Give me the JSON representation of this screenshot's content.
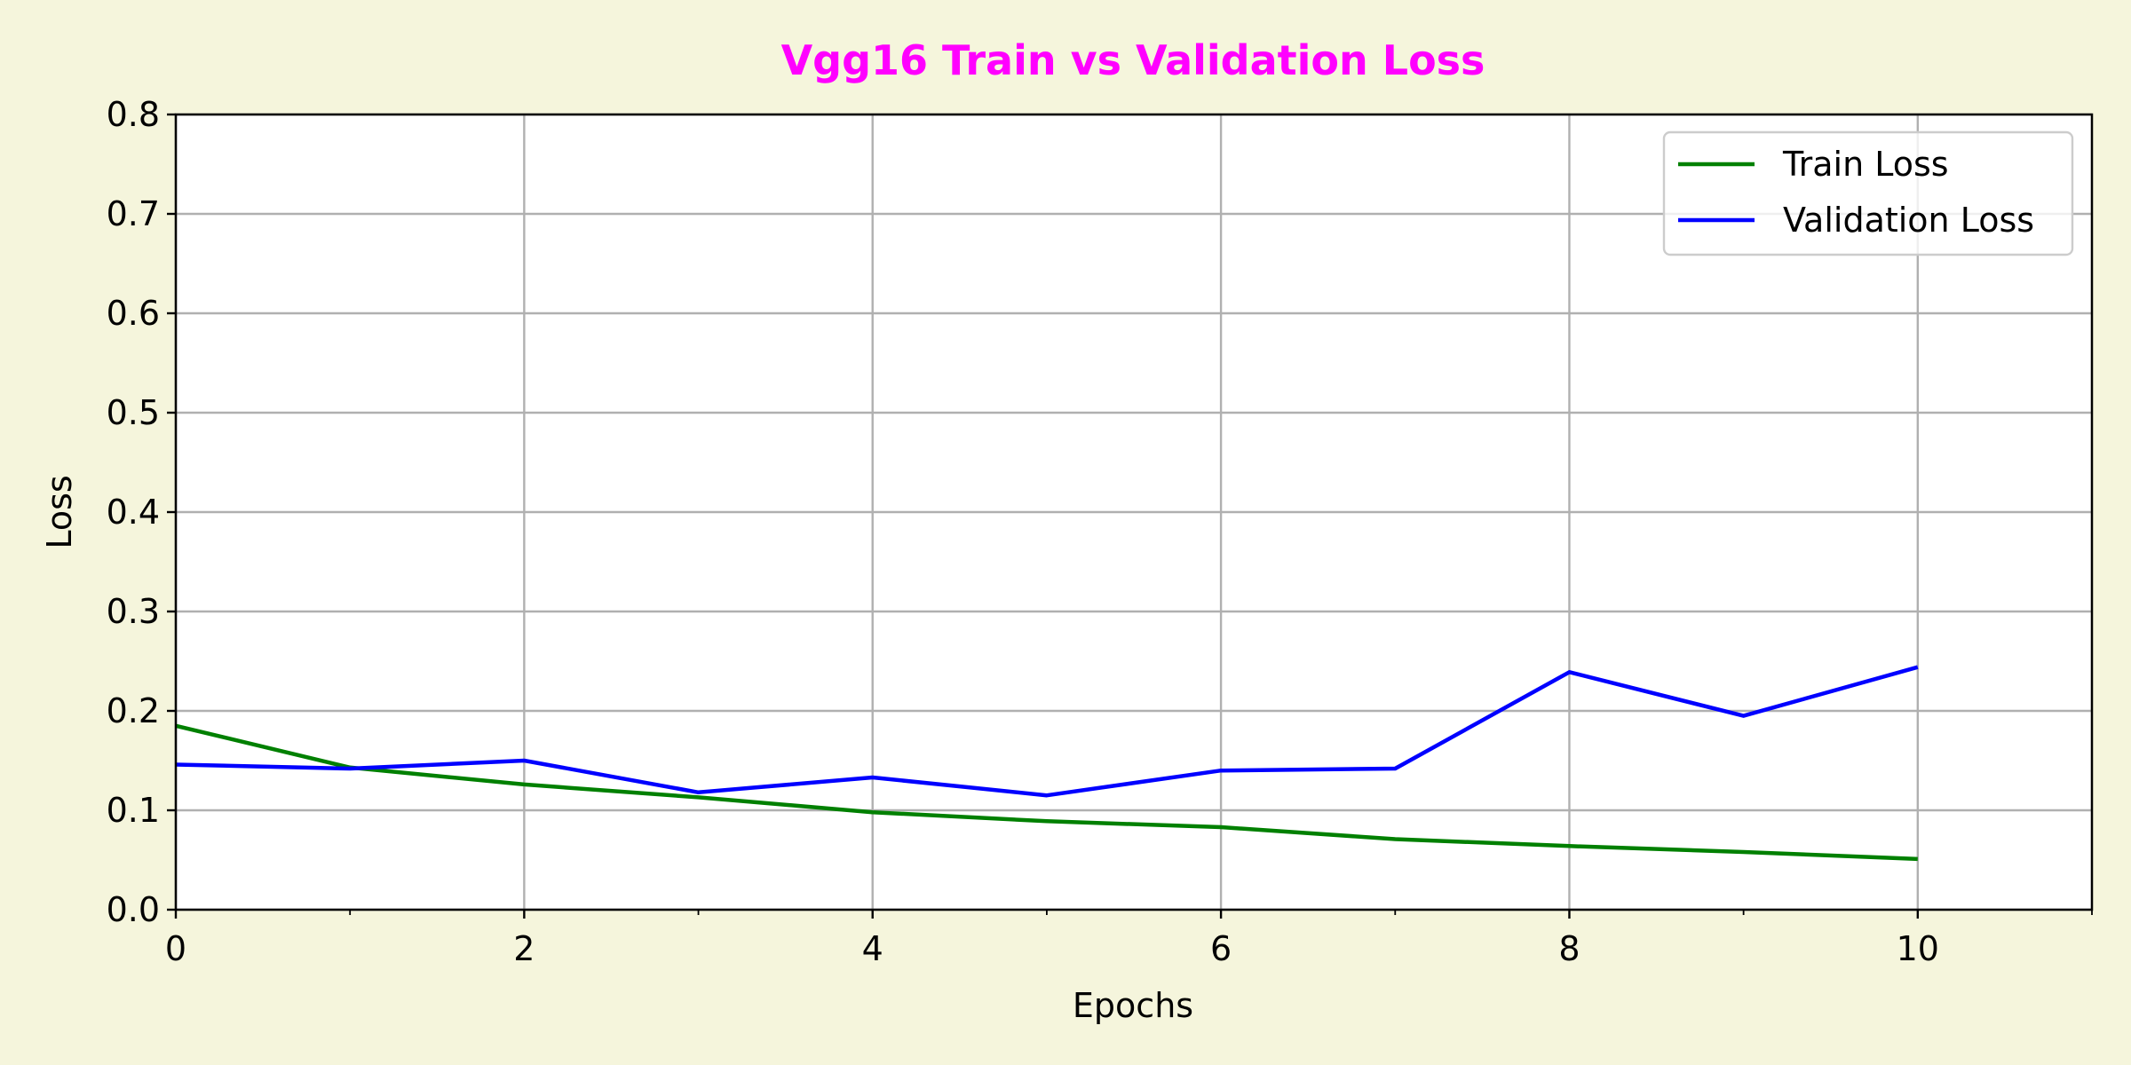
{
  "chart_data": {
    "type": "line",
    "title": "Vgg16 Train vs Validation Loss",
    "xlabel": "Epochs",
    "ylabel": "Loss",
    "xlim": [
      0,
      11
    ],
    "ylim": [
      0,
      0.8
    ],
    "x_ticks": [
      0,
      2,
      4,
      6,
      8,
      10
    ],
    "x_minor_ticks": [
      1,
      3,
      5,
      7,
      9,
      11
    ],
    "y_ticks": [
      0.0,
      0.1,
      0.2,
      0.3,
      0.4,
      0.5,
      0.6,
      0.7,
      0.8
    ],
    "x_tick_labels": [
      "0",
      "2",
      "4",
      "6",
      "8",
      "10"
    ],
    "y_tick_labels": [
      "0.0",
      "0.1",
      "0.2",
      "0.3",
      "0.4",
      "0.5",
      "0.6",
      "0.7",
      "0.8"
    ],
    "grid": true,
    "legend_position": "top-right",
    "x": [
      0,
      1,
      2,
      3,
      4,
      5,
      6,
      7,
      8,
      9,
      10
    ],
    "series": [
      {
        "name": "Train Loss",
        "color": "#008000",
        "values": [
          0.185,
          0.143,
          0.126,
          0.113,
          0.098,
          0.089,
          0.083,
          0.071,
          0.064,
          0.058,
          0.051
        ]
      },
      {
        "name": "Validation Loss",
        "color": "#0000ff",
        "values": [
          0.146,
          0.142,
          0.15,
          0.118,
          0.133,
          0.115,
          0.14,
          0.142,
          0.239,
          0.195,
          0.244
        ]
      }
    ],
    "colors": {
      "title": "#ff00ff",
      "background": "#f5f5dc",
      "plot_background": "#ffffff",
      "grid": "#b0b0b0"
    }
  }
}
